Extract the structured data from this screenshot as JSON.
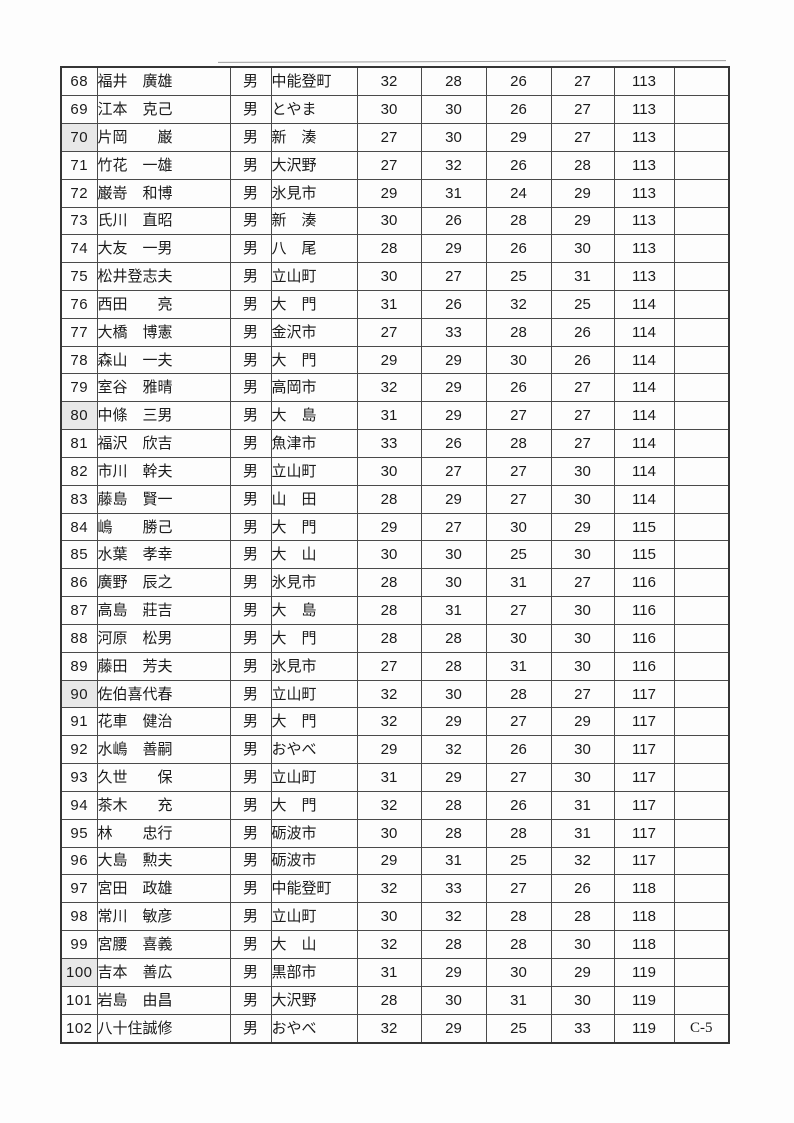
{
  "colors": {
    "page_bg": "#fdfdfd",
    "border": "#4a4a4a",
    "outer_border": "#353535",
    "shaded_cell": "#e8e8e8",
    "text": "#1b1b1b"
  },
  "table": {
    "rows": [
      {
        "shaded": false,
        "cells": [
          "68",
          "福井　廣雄",
          "男",
          "中能登町",
          "32",
          "28",
          "26",
          "27",
          "113",
          ""
        ]
      },
      {
        "shaded": false,
        "cells": [
          "69",
          "江本　克己",
          "男",
          "とやま",
          "30",
          "30",
          "26",
          "27",
          "113",
          ""
        ]
      },
      {
        "shaded": true,
        "cells": [
          "70",
          "片岡　　巌",
          "男",
          "新　湊",
          "27",
          "30",
          "29",
          "27",
          "113",
          ""
        ]
      },
      {
        "shaded": false,
        "cells": [
          "71",
          "竹花　一雄",
          "男",
          "大沢野",
          "27",
          "32",
          "26",
          "28",
          "113",
          ""
        ]
      },
      {
        "shaded": false,
        "cells": [
          "72",
          "巌嵜　和博",
          "男",
          "氷見市",
          "29",
          "31",
          "24",
          "29",
          "113",
          ""
        ]
      },
      {
        "shaded": false,
        "cells": [
          "73",
          "氏川　直昭",
          "男",
          "新　湊",
          "30",
          "26",
          "28",
          "29",
          "113",
          ""
        ]
      },
      {
        "shaded": false,
        "cells": [
          "74",
          "大友　一男",
          "男",
          "八　尾",
          "28",
          "29",
          "26",
          "30",
          "113",
          ""
        ]
      },
      {
        "shaded": false,
        "cells": [
          "75",
          "松井登志夫",
          "男",
          "立山町",
          "30",
          "27",
          "25",
          "31",
          "113",
          ""
        ]
      },
      {
        "shaded": false,
        "cells": [
          "76",
          "西田　　亮",
          "男",
          "大　門",
          "31",
          "26",
          "32",
          "25",
          "114",
          ""
        ]
      },
      {
        "shaded": false,
        "cells": [
          "77",
          "大橋　博憲",
          "男",
          "金沢市",
          "27",
          "33",
          "28",
          "26",
          "114",
          ""
        ]
      },
      {
        "shaded": false,
        "cells": [
          "78",
          "森山　一夫",
          "男",
          "大　門",
          "29",
          "29",
          "30",
          "26",
          "114",
          ""
        ]
      },
      {
        "shaded": false,
        "cells": [
          "79",
          "室谷　雅晴",
          "男",
          "高岡市",
          "32",
          "29",
          "26",
          "27",
          "114",
          ""
        ]
      },
      {
        "shaded": true,
        "cells": [
          "80",
          "中條　三男",
          "男",
          "大　島",
          "31",
          "29",
          "27",
          "27",
          "114",
          ""
        ]
      },
      {
        "shaded": false,
        "cells": [
          "81",
          "福沢　欣吉",
          "男",
          "魚津市",
          "33",
          "26",
          "28",
          "27",
          "114",
          ""
        ]
      },
      {
        "shaded": false,
        "cells": [
          "82",
          "市川　幹夫",
          "男",
          "立山町",
          "30",
          "27",
          "27",
          "30",
          "114",
          ""
        ]
      },
      {
        "shaded": false,
        "cells": [
          "83",
          "藤島　賢一",
          "男",
          "山　田",
          "28",
          "29",
          "27",
          "30",
          "114",
          ""
        ]
      },
      {
        "shaded": false,
        "cells": [
          "84",
          "嶋　　勝己",
          "男",
          "大　門",
          "29",
          "27",
          "30",
          "29",
          "115",
          ""
        ]
      },
      {
        "shaded": false,
        "cells": [
          "85",
          "水葉　孝幸",
          "男",
          "大　山",
          "30",
          "30",
          "25",
          "30",
          "115",
          ""
        ]
      },
      {
        "shaded": false,
        "cells": [
          "86",
          "廣野　辰之",
          "男",
          "氷見市",
          "28",
          "30",
          "31",
          "27",
          "116",
          ""
        ]
      },
      {
        "shaded": false,
        "cells": [
          "87",
          "高島　莊吉",
          "男",
          "大　島",
          "28",
          "31",
          "27",
          "30",
          "116",
          ""
        ]
      },
      {
        "shaded": false,
        "cells": [
          "88",
          "河原　松男",
          "男",
          "大　門",
          "28",
          "28",
          "30",
          "30",
          "116",
          ""
        ]
      },
      {
        "shaded": false,
        "cells": [
          "89",
          "藤田　芳夫",
          "男",
          "氷見市",
          "27",
          "28",
          "31",
          "30",
          "116",
          ""
        ]
      },
      {
        "shaded": true,
        "cells": [
          "90",
          "佐伯喜代春",
          "男",
          "立山町",
          "32",
          "30",
          "28",
          "27",
          "117",
          ""
        ]
      },
      {
        "shaded": false,
        "cells": [
          "91",
          "花車　健治",
          "男",
          "大　門",
          "32",
          "29",
          "27",
          "29",
          "117",
          ""
        ]
      },
      {
        "shaded": false,
        "cells": [
          "92",
          "水嶋　善嗣",
          "男",
          "おやべ",
          "29",
          "32",
          "26",
          "30",
          "117",
          ""
        ]
      },
      {
        "shaded": false,
        "cells": [
          "93",
          "久世　　保",
          "男",
          "立山町",
          "31",
          "29",
          "27",
          "30",
          "117",
          ""
        ]
      },
      {
        "shaded": false,
        "cells": [
          "94",
          "茶木　　充",
          "男",
          "大　門",
          "32",
          "28",
          "26",
          "31",
          "117",
          ""
        ]
      },
      {
        "shaded": false,
        "cells": [
          "95",
          "林　　忠行",
          "男",
          "砺波市",
          "30",
          "28",
          "28",
          "31",
          "117",
          ""
        ]
      },
      {
        "shaded": false,
        "cells": [
          "96",
          "大島　勲夫",
          "男",
          "砺波市",
          "29",
          "31",
          "25",
          "32",
          "117",
          ""
        ]
      },
      {
        "shaded": false,
        "cells": [
          "97",
          "宮田　政雄",
          "男",
          "中能登町",
          "32",
          "33",
          "27",
          "26",
          "118",
          ""
        ]
      },
      {
        "shaded": false,
        "cells": [
          "98",
          "常川　敏彦",
          "男",
          "立山町",
          "30",
          "32",
          "28",
          "28",
          "118",
          ""
        ]
      },
      {
        "shaded": false,
        "cells": [
          "99",
          "宮腰　喜義",
          "男",
          "大　山",
          "32",
          "28",
          "28",
          "30",
          "118",
          ""
        ]
      },
      {
        "shaded": true,
        "cells": [
          "100",
          "吉本　善広",
          "男",
          "黒部市",
          "31",
          "29",
          "30",
          "29",
          "119",
          ""
        ]
      },
      {
        "shaded": false,
        "cells": [
          "101",
          "岩島　由昌",
          "男",
          "大沢野",
          "28",
          "30",
          "31",
          "30",
          "119",
          ""
        ]
      },
      {
        "shaded": false,
        "cells": [
          "102",
          "八十住誠修",
          "男",
          "おやべ",
          "32",
          "29",
          "25",
          "33",
          "119",
          "C-5"
        ]
      }
    ]
  }
}
